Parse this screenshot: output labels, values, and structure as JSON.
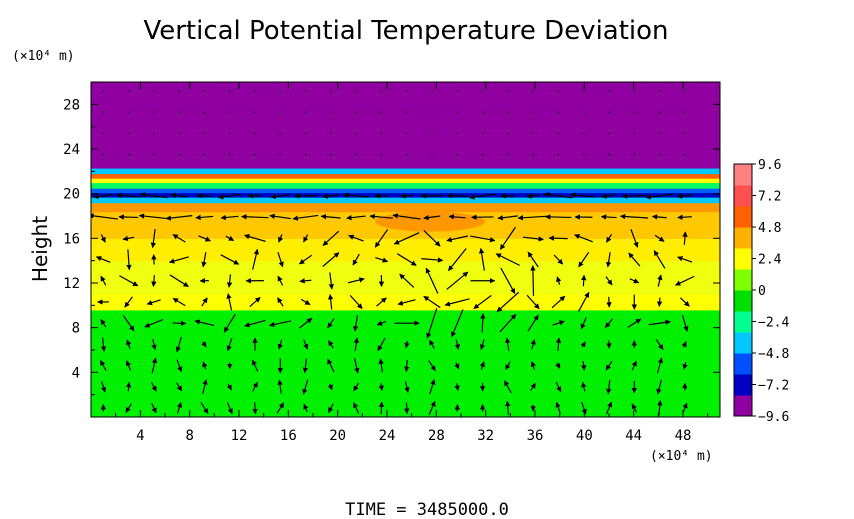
{
  "chart_data": {
    "type": "heatmap",
    "title": "Vertical Potential Temperature Deviation",
    "xlabel": "",
    "ylabel": "Height",
    "x_unit": "(×10⁴ m)",
    "y_unit": "(×10⁴ m)",
    "xlim": [
      0,
      51
    ],
    "ylim": [
      0,
      30
    ],
    "x_ticks": [
      4,
      8,
      12,
      16,
      20,
      24,
      28,
      32,
      36,
      40,
      44,
      48
    ],
    "x_tick_labels": [
      "4",
      "8",
      "12",
      "16",
      "20",
      "24",
      "28",
      "32",
      "36",
      "40",
      "44",
      "48"
    ],
    "y_ticks": [
      4,
      8,
      12,
      16,
      20,
      24,
      28
    ],
    "y_tick_labels": [
      "4",
      "8",
      "12",
      "16",
      "20",
      "24",
      "28"
    ],
    "colorbar": {
      "min": -9.6,
      "max": 9.6,
      "ticks": [
        9.6,
        7.2,
        4.8,
        2.4,
        0,
        -2.4,
        -4.8,
        -7.2,
        -9.6
      ],
      "tick_labels": [
        "9.6",
        "7.2",
        "4.8",
        "2.4",
        "0",
        "−2.4",
        "−4.8",
        "−7.2",
        "−9.6"
      ],
      "colors": [
        "#9000a0",
        "#0000c0",
        "#0050ff",
        "#00c8ff",
        "#00ff90",
        "#00e000",
        "#80ff00",
        "#ffff00",
        "#ffb000",
        "#ff6000",
        "#ff5050",
        "#ff8080"
      ]
    },
    "field_layers": [
      {
        "y_range": [
          0,
          9.6
        ],
        "value": 0.5,
        "color": "#00f000"
      },
      {
        "y_range": [
          9.6,
          11.0
        ],
        "value": 3.2,
        "color": "#ffff00"
      },
      {
        "y_range": [
          11.0,
          14.0
        ],
        "value": 3.4,
        "color": "#f0ff10"
      },
      {
        "y_range": [
          14.0,
          16.0
        ],
        "value": 3.8,
        "color": "#ffee00"
      },
      {
        "y_range": [
          16.0,
          18.4
        ],
        "value": 4.4,
        "color": "#ffc800"
      },
      {
        "y_range": [
          18.4,
          19.2
        ],
        "value": 5.6,
        "color": "#ff9800"
      },
      {
        "y_range": [
          19.2,
          19.7
        ],
        "value": -2.4,
        "color": "#00c8ff"
      },
      {
        "y_range": [
          19.7,
          20.1
        ],
        "value": -7.2,
        "color": "#0000c0"
      },
      {
        "y_range": [
          20.1,
          20.5
        ],
        "value": -3.6,
        "color": "#0060ff"
      },
      {
        "y_range": [
          20.5,
          21.0
        ],
        "value": 2.4,
        "color": "#00ff60"
      },
      {
        "y_range": [
          21.0,
          21.4
        ],
        "value": 4.8,
        "color": "#ffff00"
      },
      {
        "y_range": [
          21.4,
          21.8
        ],
        "value": 7.2,
        "color": "#ff6000"
      },
      {
        "y_range": [
          21.8,
          22.3
        ],
        "value": -3.6,
        "color": "#00c8ff"
      },
      {
        "y_range": [
          22.3,
          30.0
        ],
        "value": -9.6,
        "color": "#9000a0"
      }
    ],
    "hotspot": {
      "x": 27.5,
      "y": 17.5,
      "value": 6.0,
      "color": "#ff7000"
    },
    "vectors": "wind arrows drawn on a regular grid (every ~2 x-units, ~1.9 y-units) below y = 22",
    "footer": "TIME  =  3485000.0"
  }
}
